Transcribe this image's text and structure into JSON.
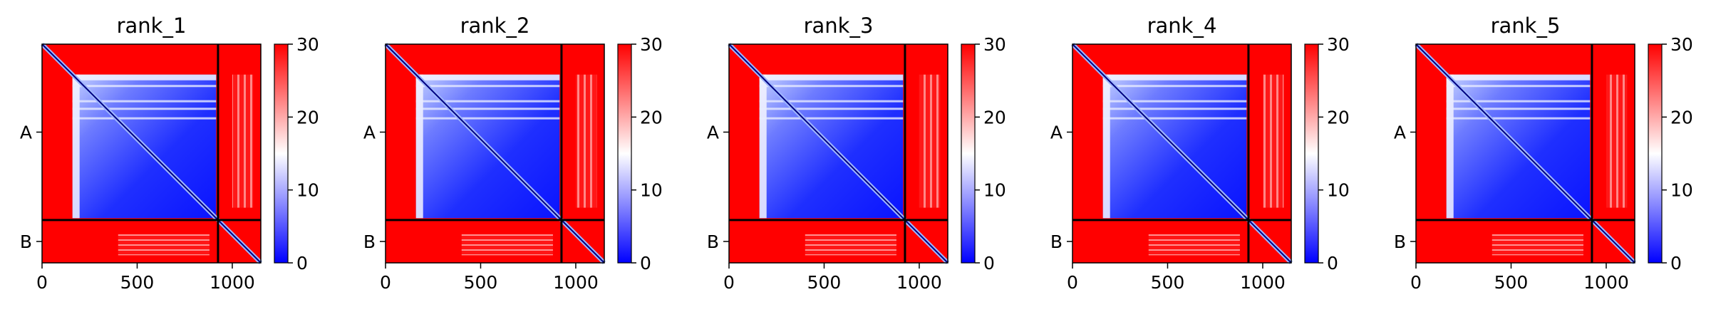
{
  "chart_data": [
    {
      "type": "heatmap",
      "title": "rank_1",
      "y_ticks": [
        "A",
        "B"
      ],
      "x_ticks": [
        0,
        500,
        1000
      ],
      "x_range": [
        0,
        1150
      ],
      "chain_boundary": 925,
      "colorbar": {
        "range": [
          0,
          30
        ],
        "ticks": [
          0,
          10,
          20,
          30
        ],
        "colormap": "bwr"
      }
    },
    {
      "type": "heatmap",
      "title": "rank_2",
      "y_ticks": [
        "A",
        "B"
      ],
      "x_ticks": [
        0,
        500,
        1000
      ],
      "x_range": [
        0,
        1150
      ],
      "chain_boundary": 925,
      "colorbar": {
        "range": [
          0,
          30
        ],
        "ticks": [
          0,
          10,
          20,
          30
        ],
        "colormap": "bwr"
      }
    },
    {
      "type": "heatmap",
      "title": "rank_3",
      "y_ticks": [
        "A",
        "B"
      ],
      "x_ticks": [
        0,
        500,
        1000
      ],
      "x_range": [
        0,
        1150
      ],
      "chain_boundary": 925,
      "colorbar": {
        "range": [
          0,
          30
        ],
        "ticks": [
          0,
          10,
          20,
          30
        ],
        "colormap": "bwr"
      }
    },
    {
      "type": "heatmap",
      "title": "rank_4",
      "y_ticks": [
        "A",
        "B"
      ],
      "x_ticks": [
        0,
        500,
        1000
      ],
      "x_range": [
        0,
        1150
      ],
      "chain_boundary": 925,
      "colorbar": {
        "range": [
          0,
          30
        ],
        "ticks": [
          0,
          10,
          20,
          30
        ],
        "colormap": "bwr"
      }
    },
    {
      "type": "heatmap",
      "title": "rank_5",
      "y_ticks": [
        "A",
        "B"
      ],
      "x_ticks": [
        0,
        500,
        1000
      ],
      "x_range": [
        0,
        1150
      ],
      "chain_boundary": 925,
      "colorbar": {
        "range": [
          0,
          30
        ],
        "ticks": [
          0,
          10,
          20,
          30
        ],
        "colormap": "bwr"
      }
    }
  ],
  "colors": {
    "high": "#ff0000",
    "mid": "#ffffff",
    "low": "#0000ff",
    "diagonal": "#000080"
  }
}
